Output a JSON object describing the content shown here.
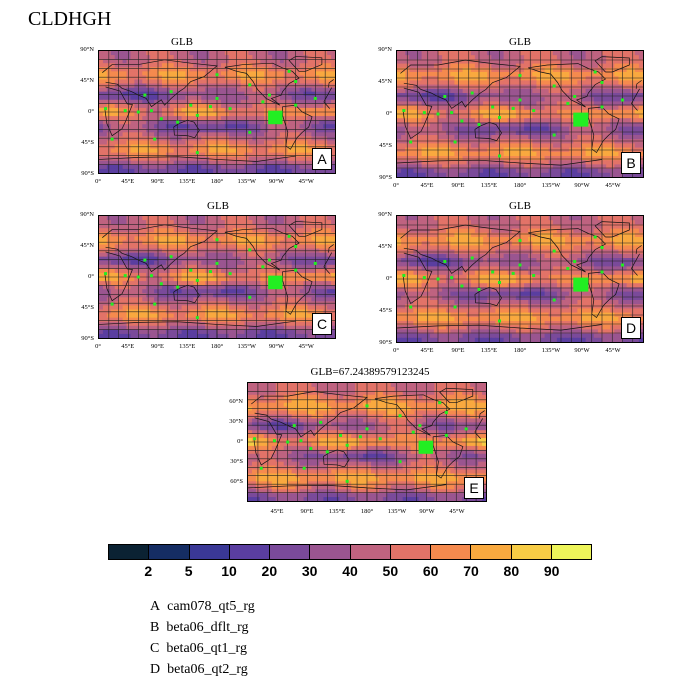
{
  "title": "CLDHGH",
  "panels": [
    {
      "id": "A",
      "title": "GLB",
      "letter": "A"
    },
    {
      "id": "B",
      "title": "GLB",
      "letter": "B"
    },
    {
      "id": "C",
      "title": "GLB",
      "letter": "C"
    },
    {
      "id": "D",
      "title": "GLB",
      "letter": "D"
    },
    {
      "id": "E",
      "title": "GLB=67.24389579123245",
      "letter": "E"
    }
  ],
  "lat_ticks": [
    "90°N",
    "45°N",
    "0°",
    "45°S",
    "90°S"
  ],
  "lon_ticks": [
    "0°",
    "45°E",
    "90°E",
    "135°E",
    "180°",
    "135°W",
    "90°W",
    "45°W"
  ],
  "e_lat_ticks": [
    "60°N",
    "30°N",
    "0°",
    "30°S",
    "60°S"
  ],
  "e_lon_ticks": [
    "45°E",
    "90°E",
    "135°E",
    "180°",
    "135°W",
    "90°W",
    "45°W"
  ],
  "colorbar": {
    "colors": [
      "#0b2233",
      "#152d63",
      "#3a3896",
      "#5a3ea0",
      "#7a4a9a",
      "#9a5590",
      "#bf6380",
      "#e27368",
      "#f58a4e",
      "#f9a93f",
      "#f7cc45",
      "#eef55a"
    ],
    "labels": [
      "2",
      "5",
      "10",
      "20",
      "30",
      "40",
      "50",
      "60",
      "70",
      "80",
      "90"
    ]
  },
  "legend": [
    {
      "letter": "A",
      "name": "cam078_qt5_rg"
    },
    {
      "letter": "B",
      "name": "beta06_dflt_rg"
    },
    {
      "letter": "C",
      "name": "beta06_qt1_rg"
    },
    {
      "letter": "D",
      "name": "beta06_qt2_rg"
    }
  ],
  "colors": {
    "missing": "#22ee22",
    "grid": "#222222"
  }
}
